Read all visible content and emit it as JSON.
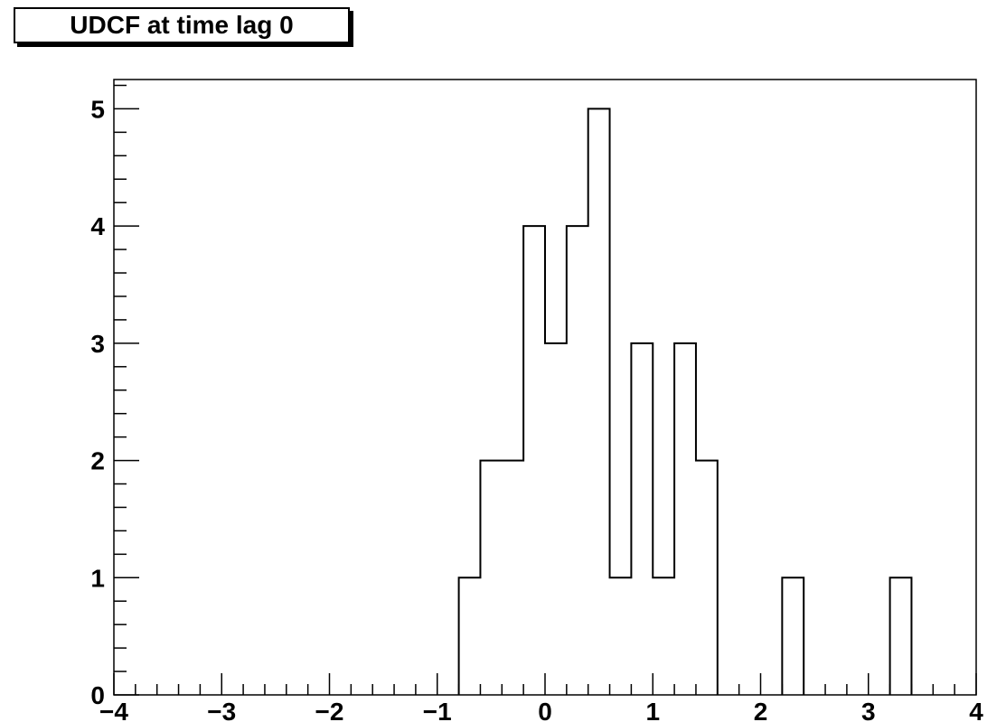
{
  "chart_data": {
    "type": "bar",
    "title": "UDCF at time lag 0",
    "xlabel": "",
    "ylabel": "",
    "xlim": [
      -4,
      4
    ],
    "ylim": [
      0,
      5.25
    ],
    "x_ticks": [
      "−4",
      "−3",
      "−2",
      "−1",
      "0",
      "1",
      "2",
      "3",
      "4"
    ],
    "y_ticks": [
      "0",
      "1",
      "2",
      "3",
      "4",
      "5"
    ],
    "bin_width": 0.2,
    "bins": [
      {
        "x0": -0.8,
        "x1": -0.6,
        "count": 1
      },
      {
        "x0": -0.6,
        "x1": -0.4,
        "count": 2
      },
      {
        "x0": -0.4,
        "x1": -0.2,
        "count": 2
      },
      {
        "x0": -0.2,
        "x1": 0.0,
        "count": 4
      },
      {
        "x0": 0.0,
        "x1": 0.2,
        "count": 3
      },
      {
        "x0": 0.2,
        "x1": 0.4,
        "count": 4
      },
      {
        "x0": 0.4,
        "x1": 0.6,
        "count": 5
      },
      {
        "x0": 0.6,
        "x1": 0.8,
        "count": 1
      },
      {
        "x0": 0.8,
        "x1": 1.0,
        "count": 3
      },
      {
        "x0": 1.0,
        "x1": 1.2,
        "count": 1
      },
      {
        "x0": 1.2,
        "x1": 1.4,
        "count": 3
      },
      {
        "x0": 1.4,
        "x1": 1.6,
        "count": 2
      },
      {
        "x0": 2.2,
        "x1": 2.4,
        "count": 1
      },
      {
        "x0": 3.2,
        "x1": 3.4,
        "count": 1
      }
    ],
    "grid": false,
    "colors": {
      "line": "#000000",
      "background": "#ffffff"
    }
  }
}
